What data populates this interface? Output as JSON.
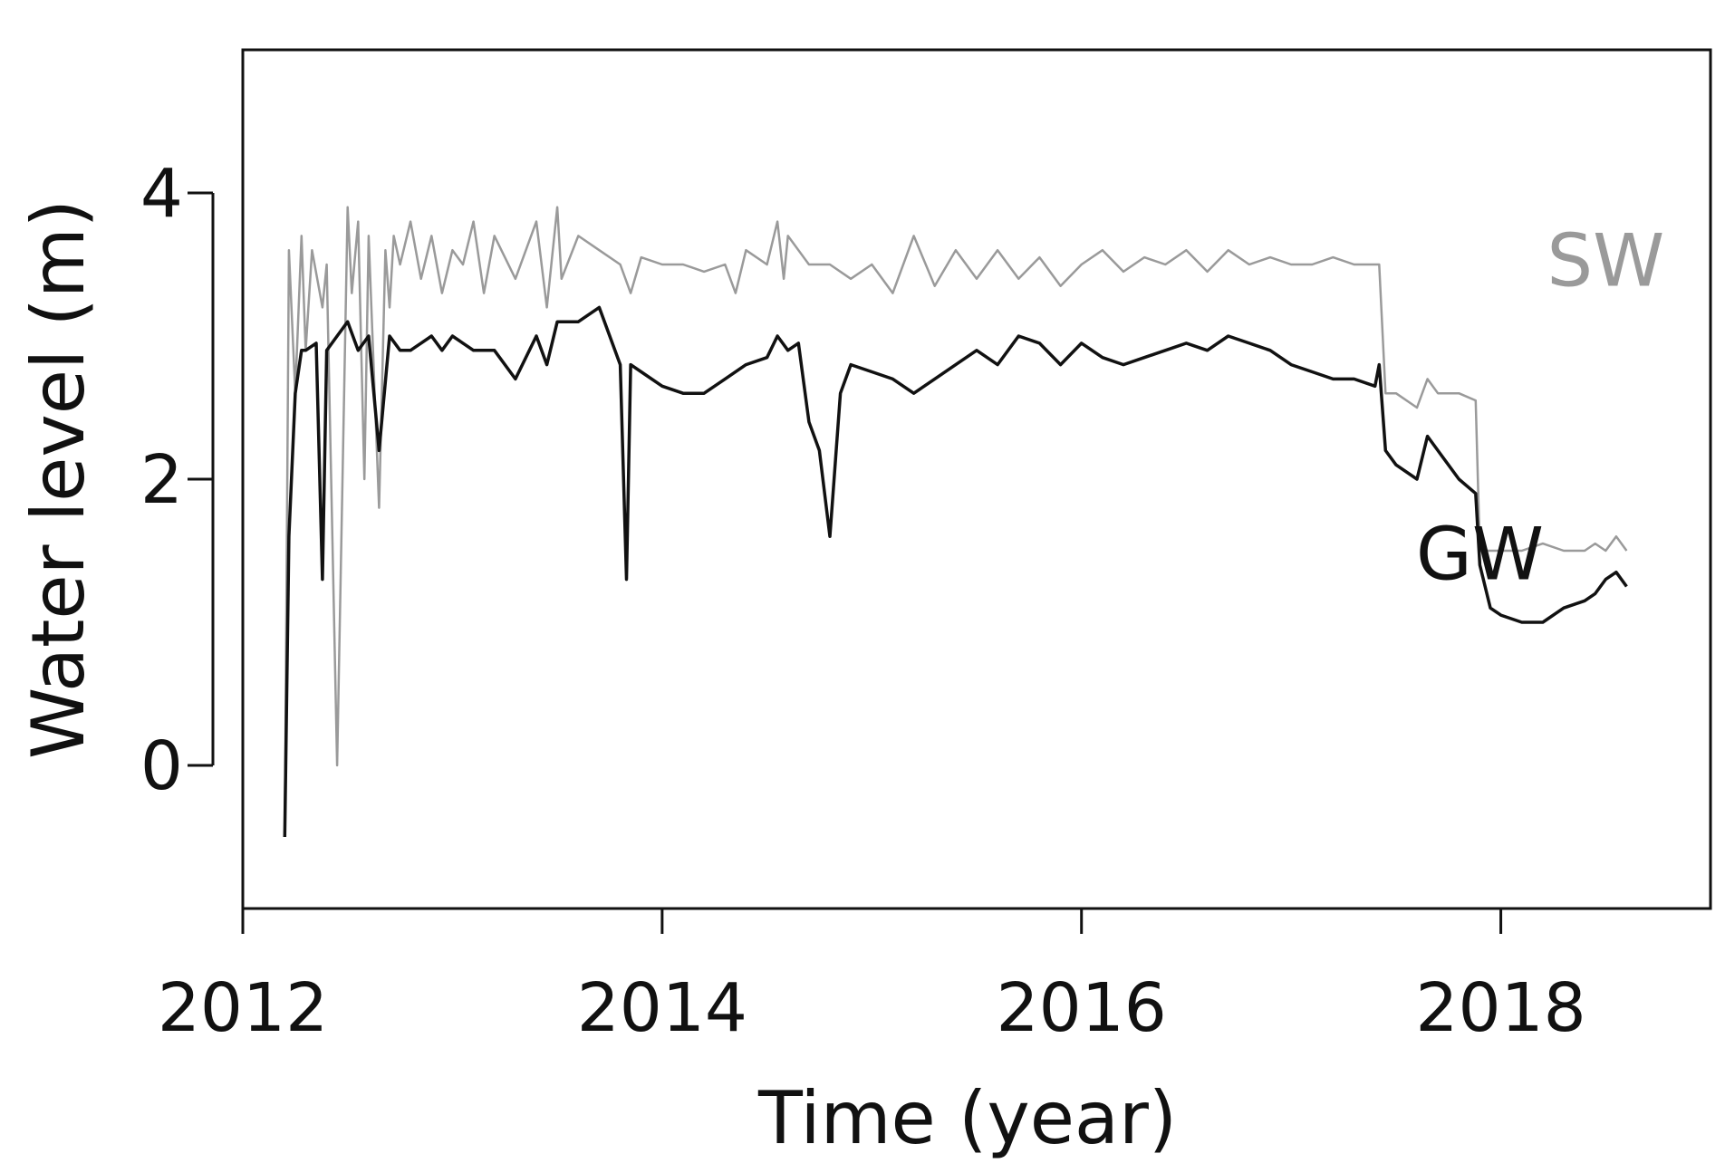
{
  "chart_data": {
    "type": "line",
    "title": "",
    "xlabel": "Time (year)",
    "ylabel": "Water level (m)",
    "xlim": [
      2012.0,
      2019.0
    ],
    "ylim": [
      -1.0,
      5.0
    ],
    "x_ticks": [
      2012,
      2014,
      2016,
      2018
    ],
    "x_tick_labels": [
      "2012",
      "2014",
      "2016",
      "2018"
    ],
    "y_ticks": [
      0,
      2,
      4
    ],
    "y_tick_labels": [
      "0",
      "2",
      "4"
    ],
    "grid": false,
    "legend": "none",
    "series": [
      {
        "name": "SW",
        "color": "#9a9a9a",
        "label_position": [
          2018.5,
          3.35
        ],
        "x": [
          2012.2,
          2012.22,
          2012.25,
          2012.28,
          2012.3,
          2012.33,
          2012.38,
          2012.4,
          2012.45,
          2012.5,
          2012.52,
          2012.55,
          2012.58,
          2012.6,
          2012.65,
          2012.68,
          2012.7,
          2012.72,
          2012.75,
          2012.8,
          2012.85,
          2012.9,
          2012.95,
          2013.0,
          2013.05,
          2013.1,
          2013.15,
          2013.2,
          2013.3,
          2013.4,
          2013.45,
          2013.5,
          2013.52,
          2013.6,
          2013.7,
          2013.8,
          2013.85,
          2013.9,
          2014.0,
          2014.1,
          2014.2,
          2014.3,
          2014.35,
          2014.4,
          2014.5,
          2014.55,
          2014.58,
          2014.6,
          2014.7,
          2014.8,
          2014.9,
          2015.0,
          2015.1,
          2015.2,
          2015.3,
          2015.4,
          2015.5,
          2015.6,
          2015.7,
          2015.8,
          2015.9,
          2016.0,
          2016.1,
          2016.2,
          2016.3,
          2016.4,
          2016.5,
          2016.6,
          2016.7,
          2016.8,
          2016.9,
          2017.0,
          2017.1,
          2017.2,
          2017.3,
          2017.42,
          2017.45,
          2017.5,
          2017.6,
          2017.65,
          2017.7,
          2017.8,
          2017.88,
          2017.9,
          2018.0,
          2018.1,
          2018.2,
          2018.3,
          2018.4,
          2018.45,
          2018.5,
          2018.55,
          2018.6
        ],
        "y": [
          -0.5,
          3.6,
          2.6,
          3.7,
          2.9,
          3.6,
          3.2,
          3.5,
          0.0,
          3.9,
          3.3,
          3.8,
          2.0,
          3.7,
          1.8,
          3.6,
          3.2,
          3.7,
          3.5,
          3.8,
          3.4,
          3.7,
          3.3,
          3.6,
          3.5,
          3.8,
          3.3,
          3.7,
          3.4,
          3.8,
          3.2,
          3.9,
          3.4,
          3.7,
          3.6,
          3.5,
          3.3,
          3.55,
          3.5,
          3.5,
          3.45,
          3.5,
          3.3,
          3.6,
          3.5,
          3.8,
          3.4,
          3.7,
          3.5,
          3.5,
          3.4,
          3.5,
          3.3,
          3.7,
          3.35,
          3.6,
          3.4,
          3.6,
          3.4,
          3.55,
          3.35,
          3.5,
          3.6,
          3.45,
          3.55,
          3.5,
          3.6,
          3.45,
          3.6,
          3.5,
          3.55,
          3.5,
          3.5,
          3.55,
          3.5,
          3.5,
          2.6,
          2.6,
          2.5,
          2.7,
          2.6,
          2.6,
          2.55,
          1.5,
          1.5,
          1.5,
          1.55,
          1.5,
          1.5,
          1.55,
          1.5,
          1.6,
          1.5
        ]
      },
      {
        "name": "GW",
        "color": "#111111",
        "label_position": [
          2017.9,
          1.3
        ],
        "x": [
          2012.2,
          2012.22,
          2012.25,
          2012.28,
          2012.3,
          2012.35,
          2012.38,
          2012.4,
          2012.45,
          2012.5,
          2012.55,
          2012.6,
          2012.65,
          2012.7,
          2012.75,
          2012.8,
          2012.85,
          2012.9,
          2012.95,
          2013.0,
          2013.05,
          2013.1,
          2013.2,
          2013.3,
          2013.4,
          2013.45,
          2013.5,
          2013.6,
          2013.7,
          2013.75,
          2013.8,
          2013.83,
          2013.85,
          2013.9,
          2014.0,
          2014.1,
          2014.2,
          2014.3,
          2014.4,
          2014.5,
          2014.55,
          2014.6,
          2014.65,
          2014.7,
          2014.75,
          2014.8,
          2014.85,
          2014.9,
          2015.0,
          2015.1,
          2015.2,
          2015.3,
          2015.4,
          2015.5,
          2015.6,
          2015.7,
          2015.8,
          2015.9,
          2016.0,
          2016.1,
          2016.2,
          2016.3,
          2016.4,
          2016.5,
          2016.6,
          2016.7,
          2016.8,
          2016.9,
          2017.0,
          2017.1,
          2017.2,
          2017.3,
          2017.4,
          2017.42,
          2017.45,
          2017.5,
          2017.6,
          2017.65,
          2017.7,
          2017.8,
          2017.88,
          2017.9,
          2017.95,
          2018.0,
          2018.1,
          2018.2,
          2018.3,
          2018.4,
          2018.45,
          2018.5,
          2018.55,
          2018.6
        ],
        "y": [
          -0.5,
          1.6,
          2.6,
          2.9,
          2.9,
          2.95,
          1.3,
          2.9,
          3.0,
          3.1,
          2.9,
          3.0,
          2.2,
          3.0,
          2.9,
          2.9,
          2.95,
          3.0,
          2.9,
          3.0,
          2.95,
          2.9,
          2.9,
          2.7,
          3.0,
          2.8,
          3.1,
          3.1,
          3.2,
          3.0,
          2.8,
          1.3,
          2.8,
          2.75,
          2.65,
          2.6,
          2.6,
          2.7,
          2.8,
          2.85,
          3.0,
          2.9,
          2.95,
          2.4,
          2.2,
          1.6,
          2.6,
          2.8,
          2.75,
          2.7,
          2.6,
          2.7,
          2.8,
          2.9,
          2.8,
          3.0,
          2.95,
          2.8,
          2.95,
          2.85,
          2.8,
          2.85,
          2.9,
          2.95,
          2.9,
          3.0,
          2.95,
          2.9,
          2.8,
          2.75,
          2.7,
          2.7,
          2.65,
          2.8,
          2.2,
          2.1,
          2.0,
          2.3,
          2.2,
          2.0,
          1.9,
          1.4,
          1.1,
          1.05,
          1.0,
          1.0,
          1.1,
          1.15,
          1.2,
          1.3,
          1.35,
          1.25
        ]
      }
    ]
  }
}
